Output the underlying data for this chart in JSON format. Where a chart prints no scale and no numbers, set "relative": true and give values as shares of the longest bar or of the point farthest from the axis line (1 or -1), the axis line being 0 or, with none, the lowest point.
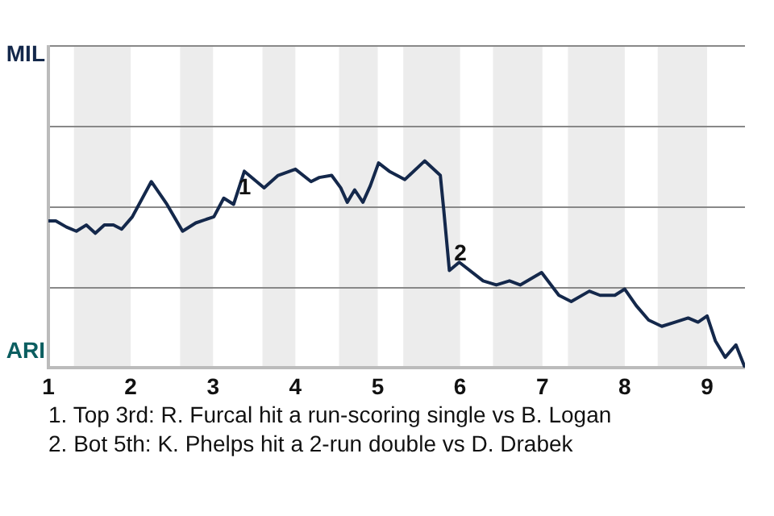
{
  "chart_data": {
    "type": "line",
    "relative": true,
    "x": [
      1,
      1.09,
      1.22,
      1.34,
      1.46,
      1.57,
      1.68,
      1.79,
      1.89,
      2.02,
      2.25,
      2.44,
      2.63,
      2.79,
      3.01,
      3.13,
      3.25,
      3.38,
      3.62,
      3.79,
      4,
      4.19,
      4.29,
      4.44,
      4.55,
      4.63,
      4.72,
      4.82,
      4.91,
      5.01,
      5.14,
      5.33,
      5.57,
      5.76,
      5.8,
      5.87,
      5.99,
      6.28,
      6.44,
      6.6,
      6.73,
      6.99,
      7.2,
      7.35,
      7.57,
      7.7,
      7.88,
      8,
      8.14,
      8.29,
      8.45,
      8.61,
      8.77,
      8.89,
      9,
      9.1,
      9.22,
      9.35,
      9.46
    ],
    "series": [
      {
        "color": "#14284b",
        "values": [
          0.71,
          0.71,
          0.68,
          0.66,
          0.69,
          0.65,
          0.69,
          0.69,
          0.67,
          0.73,
          0.9,
          0.79,
          0.66,
          0.7,
          0.73,
          0.82,
          0.79,
          0.95,
          0.87,
          0.93,
          0.96,
          0.9,
          0.92,
          0.93,
          0.87,
          0.8,
          0.86,
          0.8,
          0.88,
          0.99,
          0.95,
          0.91,
          1,
          0.93,
          0.77,
          0.47,
          0.51,
          0.42,
          0.4,
          0.42,
          0.4,
          0.46,
          0.35,
          0.32,
          0.37,
          0.35,
          0.35,
          0.38,
          0.3,
          0.23,
          0.2,
          0.22,
          0.24,
          0.22,
          0.25,
          0.13,
          0.05,
          0.11,
          0
        ]
      }
    ],
    "xlim": [
      1,
      9.46
    ],
    "xticks": [
      1,
      2,
      3,
      4,
      5,
      6,
      7,
      8,
      9
    ],
    "legend": false,
    "ref_lines": [
      {
        "axis": "y",
        "value": 0.39,
        "color": "#888888"
      },
      {
        "axis": "y",
        "value": 0.78,
        "color": "#888888"
      },
      {
        "axis": "y",
        "value": 1.17,
        "color": "#888888"
      },
      {
        "axis": "y",
        "value": 1.56,
        "color": "#888888"
      }
    ],
    "marker": "none",
    "line_style": "solid",
    "bands": [
      {
        "axis": "x",
        "from": 1.31,
        "to": 2,
        "color": "#ececec"
      },
      {
        "axis": "x",
        "from": 2.6,
        "to": 3,
        "color": "#ececec"
      },
      {
        "axis": "x",
        "from": 3.6,
        "to": 4,
        "color": "#ececec"
      },
      {
        "axis": "x",
        "from": 4.53,
        "to": 5,
        "color": "#ececec"
      },
      {
        "axis": "x",
        "from": 5.31,
        "to": 6,
        "color": "#ececec"
      },
      {
        "axis": "x",
        "from": 6.4,
        "to": 7,
        "color": "#ececec"
      },
      {
        "axis": "x",
        "from": 7.31,
        "to": 8,
        "color": "#ececec"
      },
      {
        "axis": "x",
        "from": 8.4,
        "to": 9,
        "color": "#ececec"
      }
    ],
    "annotations": [
      "MIL",
      "ARI",
      {
        "text": "1",
        "x": 3.25,
        "y": 0.79
      },
      {
        "text": "2",
        "x": 5.87,
        "y": 0.47
      },
      "1. Top 3rd: R. Furcal hit a run-scoring single vs B. Logan",
      "2. Bot 5th: K. Phelps hit a 2-run double vs D. Drabek"
    ]
  }
}
